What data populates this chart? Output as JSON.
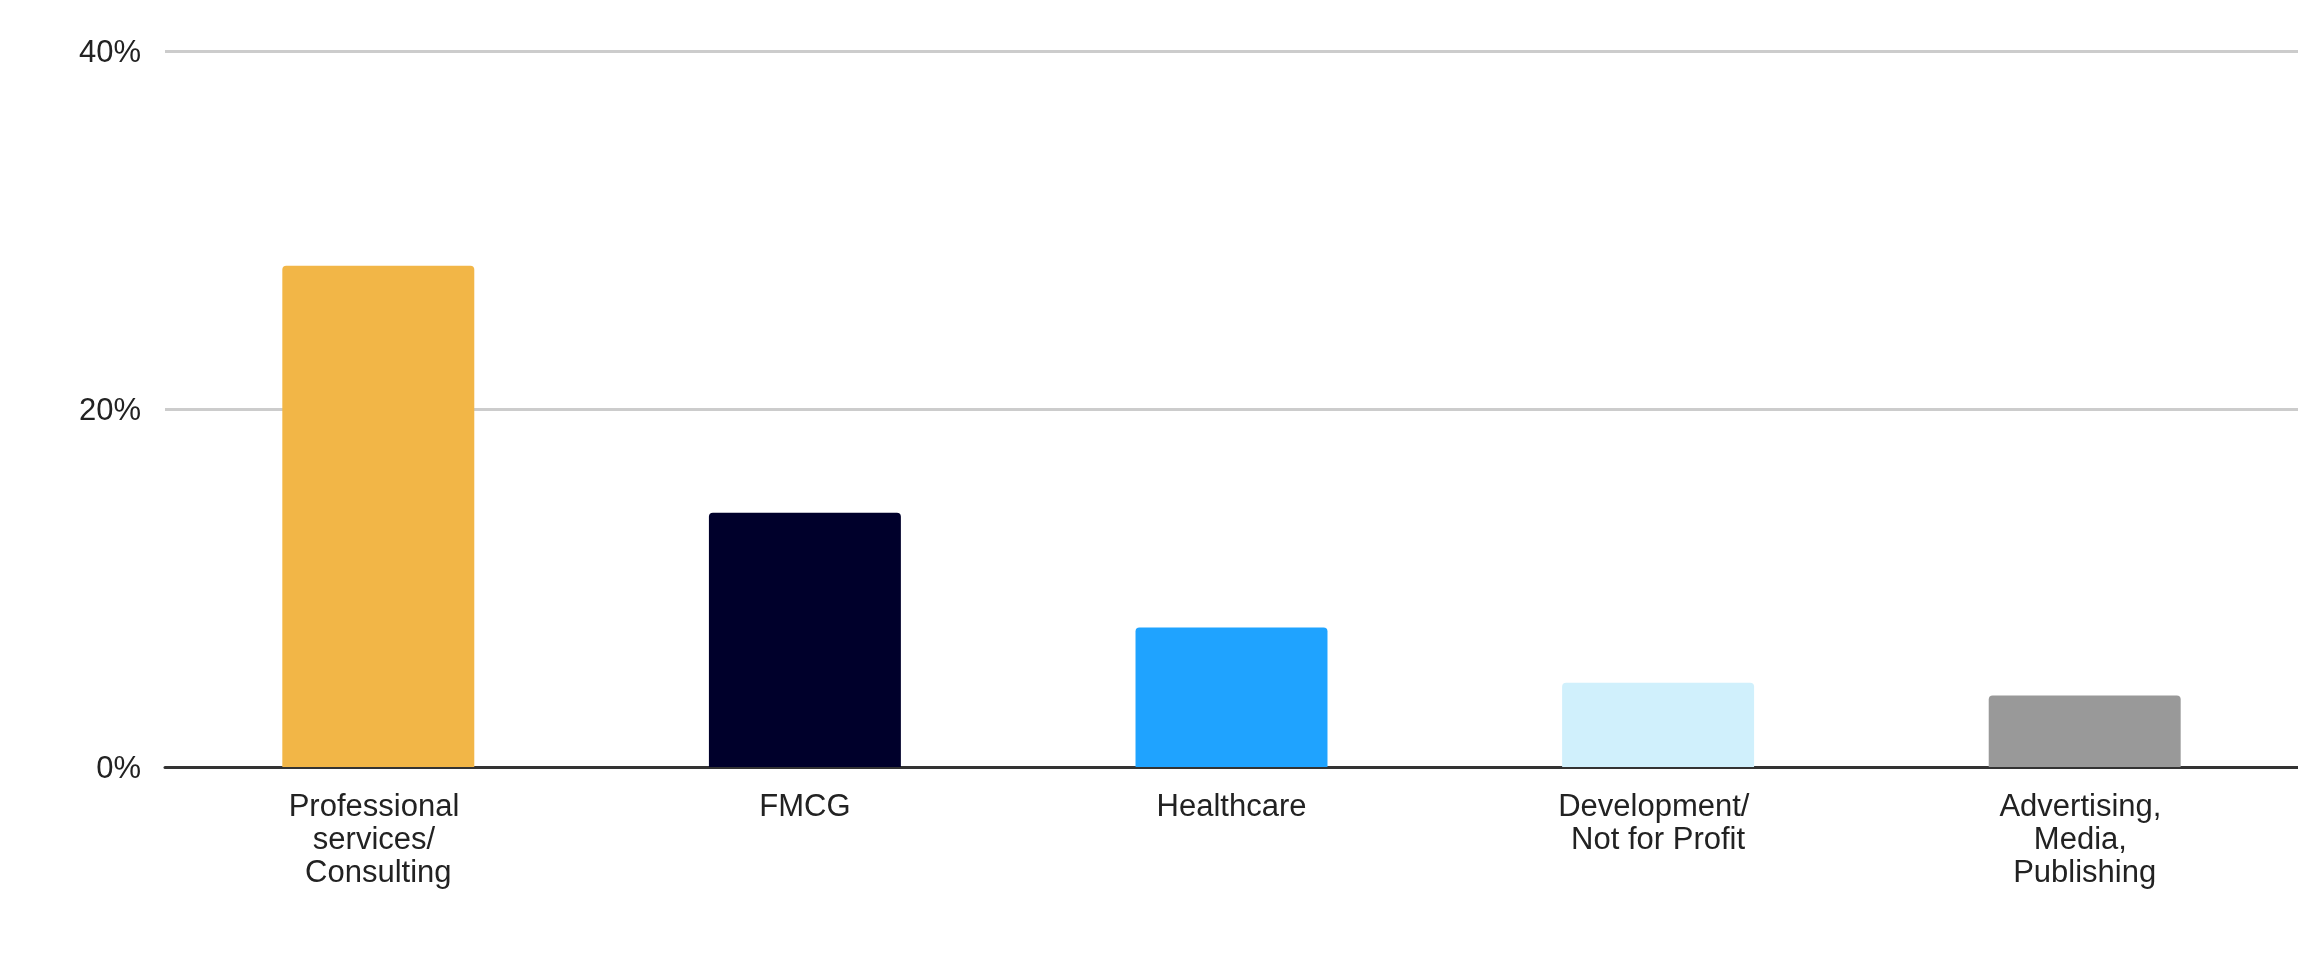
{
  "chart_data": {
    "type": "bar",
    "categories": [
      "Professional services/ Consulting",
      "FMCG",
      "Healthcare",
      "Development/ Not for Profit",
      "Advertising, Media, Publishing"
    ],
    "values": [
      28,
      14.2,
      7.8,
      4.7,
      4
    ],
    "colors": [
      "#f2b647",
      "#00002b",
      "#1fa3ff",
      "#d0f0fc",
      "#999999"
    ],
    "ylim": [
      0,
      40
    ],
    "yticks": [
      {
        "value": 0,
        "label": "0%"
      },
      {
        "value": 20,
        "label": "20%"
      },
      {
        "value": 40,
        "label": "40%"
      }
    ],
    "grid": "y"
  }
}
